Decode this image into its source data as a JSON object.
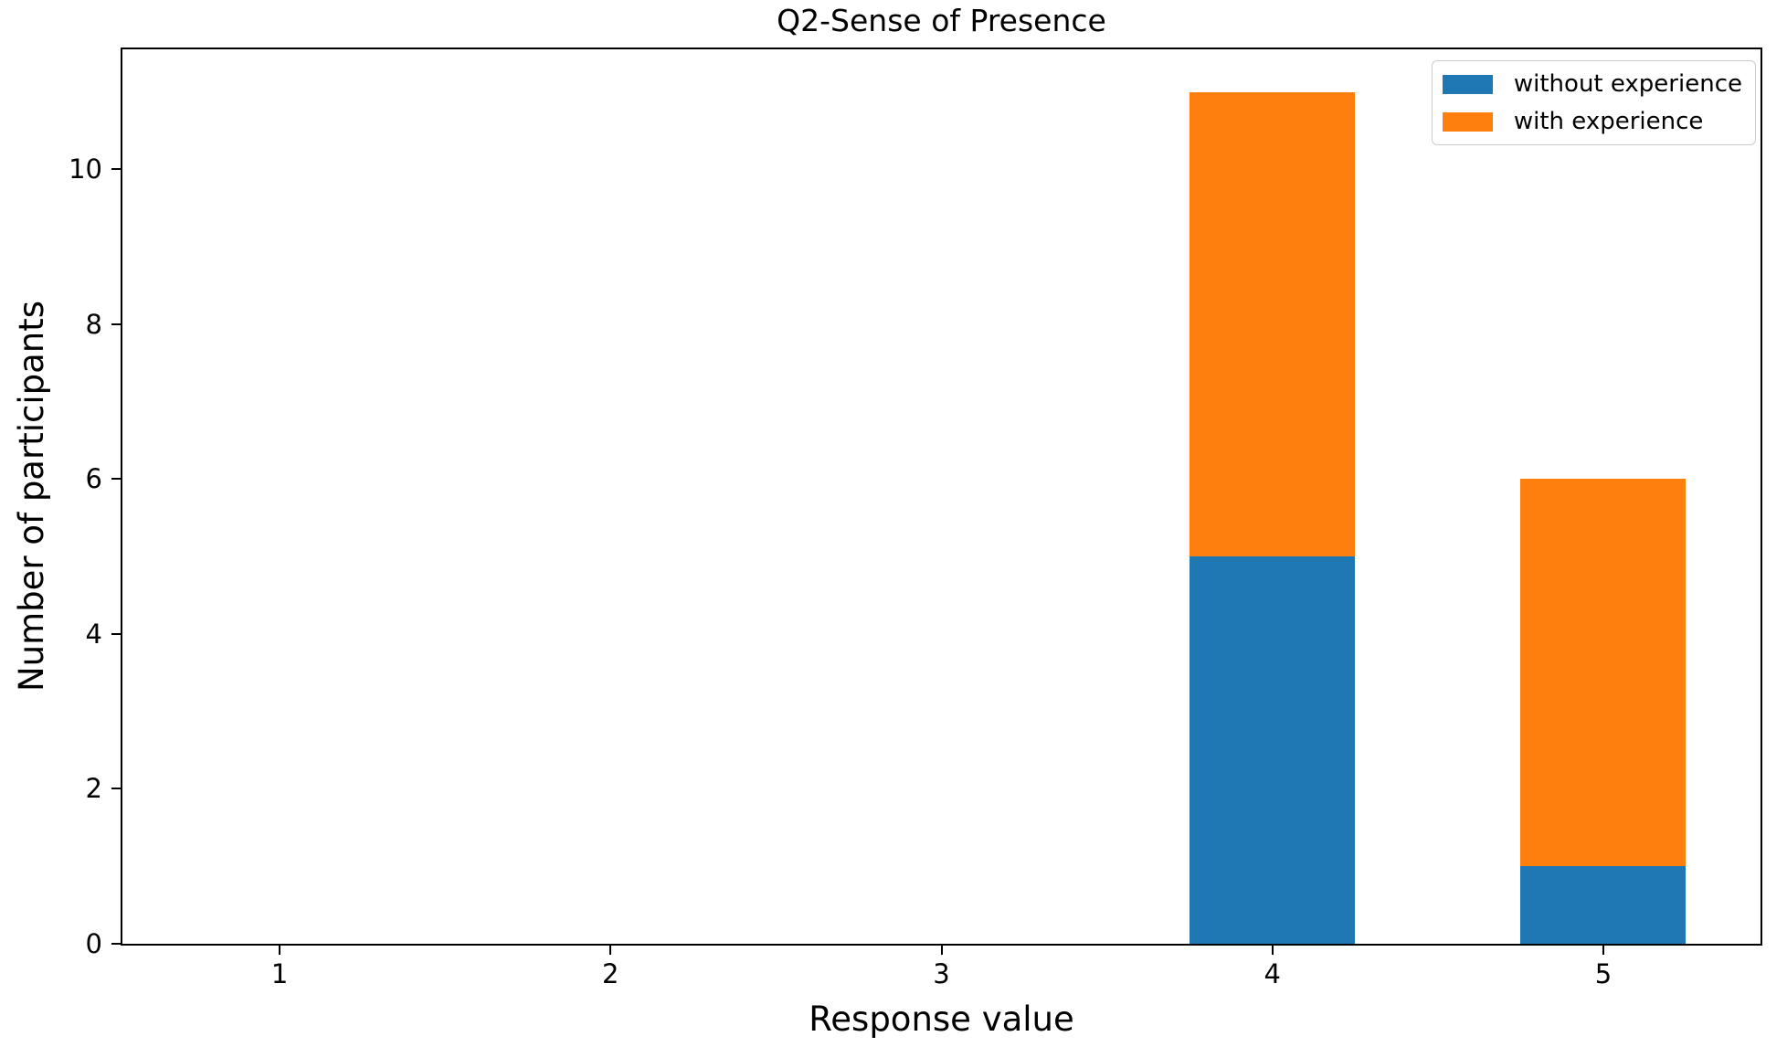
{
  "chart_data": {
    "type": "bar",
    "stacked": true,
    "title": "Q2-Sense of Presence",
    "xlabel": "Response value",
    "ylabel": "Number of participants",
    "categories": [
      1,
      2,
      3,
      4,
      5
    ],
    "series": [
      {
        "name": "without experience",
        "color": "#1f77b4",
        "values": [
          0,
          0,
          0,
          5,
          1
        ]
      },
      {
        "name": "with experience",
        "color": "#ff7f0e",
        "values": [
          0,
          0,
          0,
          6,
          5
        ]
      }
    ],
    "stack_totals": [
      0,
      0,
      0,
      11,
      6
    ],
    "bar_width": 0.5,
    "xticks": [
      1,
      2,
      3,
      4,
      5
    ],
    "yticks": [
      0,
      2,
      4,
      6,
      8,
      10
    ],
    "xlim": [
      0.525,
      5.475
    ],
    "ylim": [
      0,
      11.55
    ],
    "grid": false,
    "legend_position": "upper right",
    "background": "#ffffff",
    "axis_color": "#000000"
  }
}
